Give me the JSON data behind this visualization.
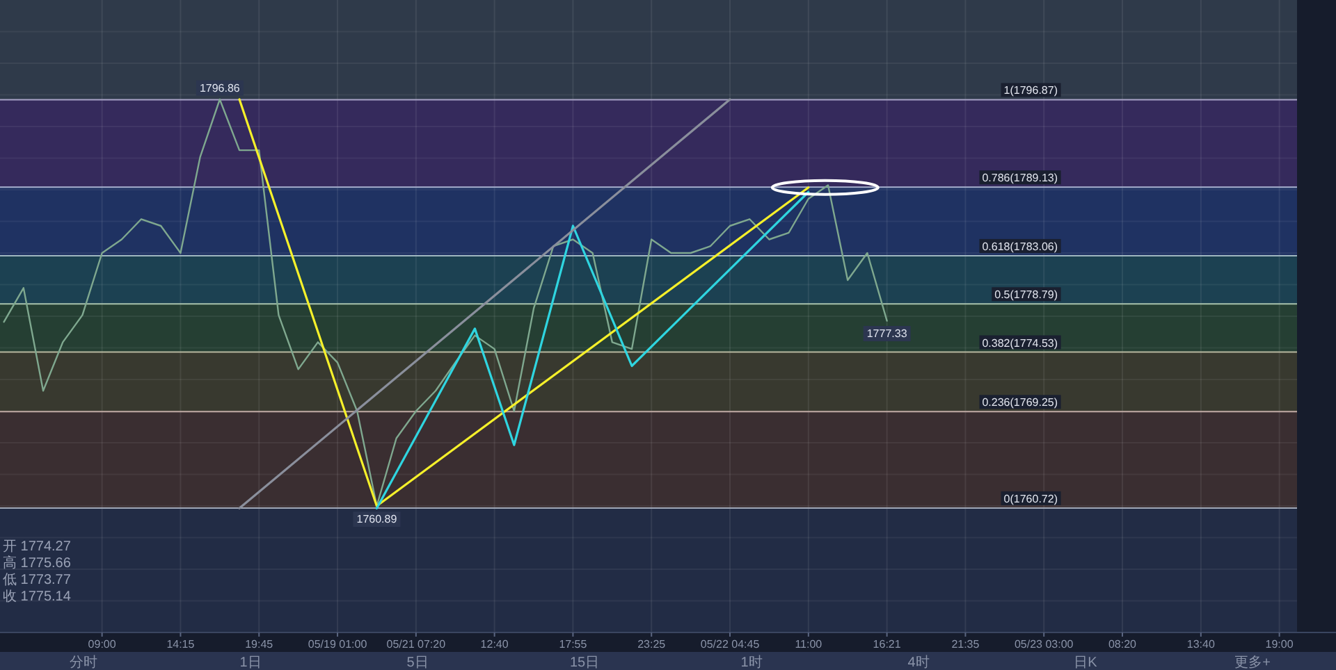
{
  "chart_data": {
    "type": "line",
    "categories": [
      null,
      null,
      null,
      null,
      null,
      "09:00",
      null,
      null,
      null,
      "14:15",
      null,
      null,
      null,
      "19:45",
      null,
      null,
      null,
      "05/19 01:00",
      null,
      null,
      null,
      "05/21 07:20",
      null,
      null,
      null,
      "12:40",
      null,
      null,
      null,
      "17:55",
      null,
      null,
      null,
      "23:25",
      null,
      null,
      null,
      "05/22 04:45",
      null,
      null,
      null,
      "11:00",
      null,
      null,
      null,
      "16:21",
      null,
      null,
      null,
      "21:35",
      null,
      null,
      null,
      "05/23 03:00",
      null,
      null,
      null,
      "08:20",
      null,
      null,
      null,
      "13:40",
      null,
      null,
      null,
      "19:00",
      null
    ],
    "series": [
      {
        "color": "#7fa88f",
        "values": [
          1777.2,
          1780.2,
          1771.1,
          1775.4,
          1777.8,
          1783.3,
          1784.5,
          1786.3,
          1785.7,
          1783.3,
          1791.8,
          1796.9,
          1792.4,
          1792.4,
          1777.8,
          1773.0,
          1775.4,
          1773.6,
          1769.3,
          1760.9,
          1766.9,
          1769.3,
          1771.1,
          1773.6,
          1776.0,
          1774.8,
          1769.3,
          1778.4,
          1783.9,
          1784.5,
          1783.3,
          1775.4,
          1774.8,
          1784.5,
          1783.3,
          1783.3,
          1783.9,
          1785.7,
          1786.3,
          1784.5,
          1785.1,
          1788.1,
          1789.3,
          1780.9,
          1783.3,
          1777.3,
          null,
          null,
          null,
          null,
          null,
          null,
          null,
          null,
          null,
          null,
          null,
          null,
          null,
          null,
          null,
          null,
          null,
          null,
          null,
          null,
          null
        ]
      },
      {
        "type": "line",
        "color": "#f5f02a",
        "values": [
          null,
          null,
          null,
          null,
          null,
          null,
          null,
          null,
          null,
          null,
          null,
          null,
          1796.9,
          null,
          null,
          null,
          null,
          null,
          null,
          1760.9,
          null,
          null,
          null,
          null,
          null,
          null,
          null,
          null,
          null,
          null,
          null,
          null,
          null,
          null,
          null,
          null,
          null,
          null,
          null,
          null,
          null,
          1789.1,
          null,
          null,
          null,
          null,
          null,
          null,
          null,
          null,
          null,
          null,
          null,
          null,
          null,
          null,
          null,
          null,
          null,
          null,
          null,
          null,
          null,
          null,
          null,
          null,
          null
        ]
      },
      {
        "type": "line",
        "color": "#2fd5e0",
        "values": [
          null,
          null,
          null,
          null,
          null,
          null,
          null,
          null,
          null,
          null,
          null,
          null,
          null,
          null,
          null,
          null,
          null,
          null,
          null,
          1760.7,
          null,
          null,
          null,
          null,
          1776.6,
          null,
          1766.3,
          null,
          null,
          1785.7,
          null,
          null,
          1773.3,
          null,
          null,
          null,
          null,
          null,
          null,
          null,
          null,
          1788.7,
          null,
          null,
          null,
          null,
          null,
          null,
          null,
          null,
          null,
          null,
          null,
          null,
          null,
          null,
          null,
          null,
          null,
          null,
          null,
          null,
          null,
          null,
          null,
          null,
          null
        ]
      },
      {
        "type": "line",
        "color": "#8a8f9c",
        "values": [
          null,
          null,
          null,
          null,
          null,
          null,
          null,
          null,
          null,
          null,
          null,
          null,
          1760.7,
          null,
          null,
          null,
          null,
          null,
          null,
          null,
          null,
          null,
          null,
          null,
          null,
          null,
          null,
          null,
          null,
          null,
          null,
          null,
          null,
          null,
          null,
          null,
          null,
          1796.9,
          null,
          null,
          null,
          null,
          null,
          null,
          null,
          null,
          null,
          null,
          null,
          null,
          null,
          null,
          null,
          null,
          null,
          null,
          null,
          null,
          null,
          null,
          null,
          null,
          null,
          null,
          null,
          null,
          null
        ]
      }
    ],
    "ylim": [
      1749.7,
      1805.7
    ],
    "tick_labels": "x",
    "grid": true,
    "marker": "none",
    "line_style": "solid",
    "bands": [
      {
        "axis": "y",
        "from": 1796.87,
        "to": 1805.7,
        "color": "#2f3a4a"
      },
      {
        "axis": "y",
        "from": 1789.13,
        "to": 1796.87,
        "color": "#352a5c"
      },
      {
        "axis": "y",
        "from": 1783.06,
        "to": 1789.13,
        "color": "#1f3262"
      },
      {
        "axis": "y",
        "from": 1778.79,
        "to": 1783.06,
        "color": "#1c4152"
      },
      {
        "axis": "y",
        "from": 1774.53,
        "to": 1778.79,
        "color": "#253f33"
      },
      {
        "axis": "y",
        "from": 1769.25,
        "to": 1774.53,
        "color": "#38392f"
      },
      {
        "axis": "y",
        "from": 1760.72,
        "to": 1769.25,
        "color": "#3a2e31"
      },
      {
        "axis": "y",
        "from": 1749.7,
        "to": 1760.72,
        "color": "#222c45"
      }
    ],
    "ref_lines": [
      {
        "axis": "y",
        "value": 1796.87,
        "label": "1(1796.87)",
        "color": "#a9a3c8"
      },
      {
        "axis": "y",
        "value": 1789.13,
        "label": "0.786(1789.13)",
        "color": "#a9b2d0"
      },
      {
        "axis": "y",
        "value": 1783.06,
        "label": "0.618(1783.06)",
        "color": "#9fb6c0"
      },
      {
        "axis": "y",
        "value": 1778.79,
        "label": "0.5(1778.79)",
        "color": "#a9c2ad"
      },
      {
        "axis": "y",
        "value": 1774.53,
        "label": "0.382(1774.53)",
        "color": "#b8b8a0"
      },
      {
        "axis": "y",
        "value": 1769.25,
        "label": "0.236(1769.25)",
        "color": "#c0aaa5"
      },
      {
        "axis": "y",
        "value": 1760.72,
        "label": "0(1760.72)",
        "color": "#a0a8b8"
      }
    ],
    "annotations": [
      {
        "text": "1796.86",
        "y": 1796.86
      },
      {
        "text": "1760.89",
        "y": 1760.89
      },
      {
        "text": "1777.33",
        "y": 1777.33
      },
      "开 1774.27",
      "高 1775.66",
      "低 1773.77",
      "收 1775.14",
      "分时",
      "1日",
      "5日",
      "15日",
      "1时",
      "4时",
      "日K",
      "更多+"
    ]
  }
}
